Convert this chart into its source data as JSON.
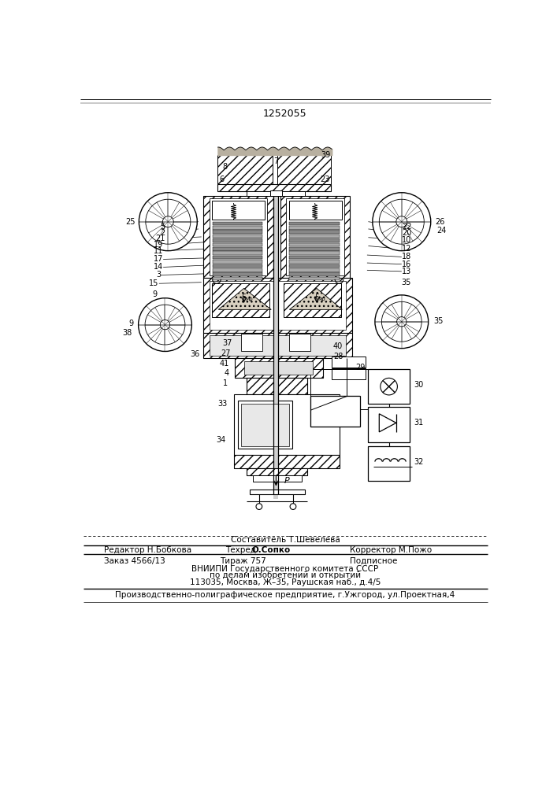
{
  "patent_number": "1252055",
  "bg": "#ffffff",
  "figsize": [
    7.07,
    10.0
  ],
  "dpi": 100,
  "footer": {
    "sostavitel": "Составитель Т.Шевелева",
    "redaktor": "Редактор Н.Бобкова",
    "tehred_label": "Техред",
    "tehred_name": "О.Сопко",
    "korrektor": "Корректор М.Пожо",
    "zakaz": "Заказ 4566/13",
    "tirazh": "Тираж 757",
    "podpisnoe": "Подписное",
    "org1": "ВНИИПИ Государственного комитета СССР",
    "org2": "по делам изобретений и открытий",
    "org3": "113035, Москва, Ж–35, Раушская наб., д.4/5",
    "production": "Производственно-полиграфическое предприятие, г.Ужгород, ул.Проектная,4"
  }
}
